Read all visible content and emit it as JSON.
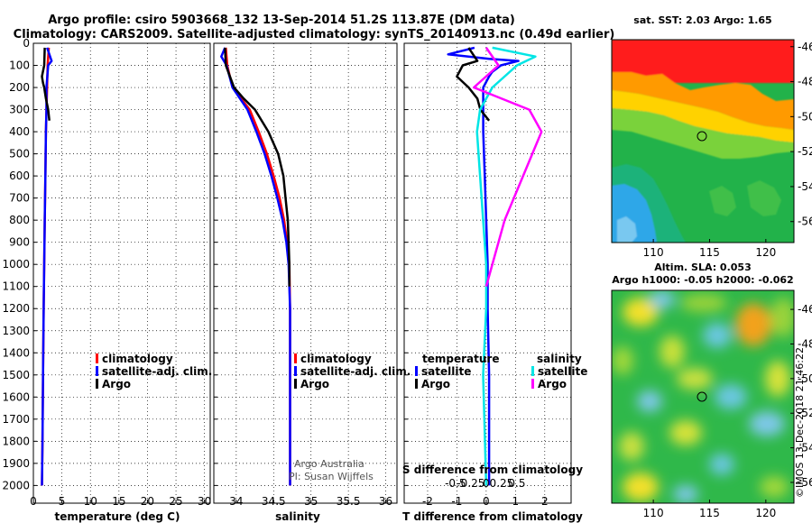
{
  "header": {
    "title_line1": "Argo profile: csiro 5903668_132 13-Sep-2014 51.2S 113.87E (DM data)",
    "title_line2": "Climatology: CARS2009. Satellite-adjusted climatology: synTS_20140913.nc (0.49d earlier)"
  },
  "watermark": "©IMOS 13-Dec-2018 21:46:22",
  "colors": {
    "climatology": "#ff0000",
    "satellite": "#0000ff",
    "argo": "#000000",
    "salinity_sat": "#00e5e5",
    "salinity_argo": "#ff00ff"
  },
  "chart_data": [
    {
      "type": "line",
      "id": "temperature",
      "xlabel": "temperature (deg C)",
      "ylabel": "depth",
      "xlim": [
        0,
        31
      ],
      "ylim": [
        2080,
        0
      ],
      "xticks": [
        0,
        5,
        10,
        15,
        20,
        25,
        30
      ],
      "yticks": [
        0,
        100,
        200,
        300,
        400,
        500,
        600,
        700,
        800,
        900,
        1000,
        1100,
        1200,
        1300,
        1400,
        1500,
        1600,
        1700,
        1800,
        1900,
        2000
      ],
      "legend": [
        "climatology",
        "satellite-adj. clim.",
        "Argo"
      ],
      "series": [
        {
          "name": "climatology",
          "color": "#ff0000",
          "depth": [
            20,
            100,
            200,
            300,
            400,
            600,
            800,
            1000,
            1200,
            1500,
            1800,
            2000
          ],
          "values": [
            2.7,
            2.5,
            2.4,
            2.3,
            2.2,
            2.1,
            2.0,
            1.9,
            1.8,
            1.7,
            1.6,
            1.5
          ]
        },
        {
          "name": "satellite-adj. clim.",
          "color": "#0000ff",
          "depth": [
            20,
            80,
            100,
            200,
            300,
            400,
            600,
            800,
            1000,
            1200,
            1500,
            1800,
            2000
          ],
          "values": [
            2.4,
            3.2,
            2.6,
            2.3,
            2.3,
            2.2,
            2.1,
            2.0,
            1.9,
            1.8,
            1.7,
            1.6,
            1.5
          ]
        },
        {
          "name": "Argo",
          "color": "#000000",
          "depth": [
            20,
            100,
            150,
            180,
            200,
            250,
            300,
            350
          ],
          "values": [
            2.0,
            1.9,
            1.5,
            1.7,
            1.9,
            2.2,
            2.6,
            2.8
          ]
        }
      ]
    },
    {
      "type": "line",
      "id": "salinity",
      "xlabel": "salinity",
      "xlim": [
        33.7,
        36.15
      ],
      "ylim": [
        2080,
        0
      ],
      "xticks": [
        34,
        34.5,
        35,
        35.5,
        36
      ],
      "legend": [
        "climatology",
        "satellite-adj. clim.",
        "Argo"
      ],
      "annotation_line1": "Argo Australia",
      "annotation_line2": "PI: Susan Wijffels",
      "series": [
        {
          "name": "climatology",
          "color": "#ff0000",
          "depth": [
            20,
            100,
            200,
            300,
            400,
            500,
            600,
            700,
            800,
            900,
            1000,
            1200,
            1500,
            2000
          ],
          "values": [
            33.86,
            33.88,
            33.95,
            34.18,
            34.3,
            34.41,
            34.5,
            34.58,
            34.64,
            34.68,
            34.71,
            34.72,
            34.72,
            34.72
          ]
        },
        {
          "name": "satellite-adj. clim.",
          "color": "#0000ff",
          "depth": [
            20,
            60,
            100,
            200,
            300,
            400,
            500,
            600,
            700,
            800,
            900,
            1000,
            1200,
            1500,
            2000
          ],
          "values": [
            33.85,
            33.8,
            33.87,
            33.95,
            34.15,
            34.27,
            34.38,
            34.47,
            34.55,
            34.62,
            34.67,
            34.7,
            34.72,
            34.72,
            34.72
          ]
        },
        {
          "name": "Argo",
          "color": "#000000",
          "depth": [
            20,
            100,
            200,
            250,
            300,
            400,
            500,
            600,
            700,
            800,
            900,
            1000,
            1100
          ],
          "values": [
            33.85,
            33.86,
            33.97,
            34.1,
            34.25,
            34.43,
            34.56,
            34.63,
            34.66,
            34.69,
            34.7,
            34.71,
            34.71
          ]
        }
      ]
    },
    {
      "type": "line",
      "id": "differences",
      "xlabel": "T difference from climatology",
      "xlabel_top": "S difference from climatology",
      "xlim": [
        -2.8,
        2.9
      ],
      "ylim": [
        2080,
        0
      ],
      "xticks": [
        -2,
        -1,
        0,
        1,
        2
      ],
      "s_ticks": [
        -0.5,
        -0.25,
        0,
        0.25,
        0.5
      ],
      "s_tick_labels": [
        "-0.5",
        "-0.25",
        "0",
        "0.25",
        "0.5"
      ],
      "legend_temperature_title": "temperature",
      "legend_salinity_title": "salinity",
      "legend_temperature": [
        "satellite",
        "Argo"
      ],
      "legend_salinity": [
        "satellite",
        "Argo"
      ],
      "series": [
        {
          "name": "T satellite",
          "color": "#0000ff",
          "depth": [
            20,
            50,
            70,
            80,
            100,
            130,
            150,
            200,
            300,
            400,
            600,
            800,
            1000,
            1200,
            1500,
            2000
          ],
          "values": [
            -0.4,
            -1.3,
            0.1,
            1.1,
            0.5,
            0.2,
            0.1,
            -0.1,
            -0.1,
            -0.1,
            -0.05,
            0,
            0.05,
            0.05,
            0.1,
            0.1
          ]
        },
        {
          "name": "T Argo",
          "color": "#000000",
          "depth": [
            20,
            80,
            100,
            150,
            200,
            250,
            300,
            350
          ],
          "values": [
            -0.6,
            -0.3,
            -0.8,
            -1.0,
            -0.6,
            -0.3,
            -0.2,
            0.1
          ]
        },
        {
          "name": "S satellite",
          "color": "#00e5e5",
          "depth": [
            20,
            60,
            100,
            200,
            300,
            400,
            600,
            800,
            1000,
            1200,
            1500,
            2000
          ],
          "values": [
            0.1,
            0.8,
            0.5,
            0.1,
            -0.1,
            -0.15,
            -0.1,
            -0.05,
            0.0,
            0.0,
            -0.05,
            0.0
          ]
        },
        {
          "name": "S Argo",
          "color": "#ff00ff",
          "depth": [
            20,
            100,
            200,
            300,
            400,
            600,
            800,
            1000,
            1100
          ],
          "values": [
            0.0,
            0.2,
            -0.2,
            0.7,
            0.9,
            0.6,
            0.3,
            0.1,
            0.0
          ]
        }
      ]
    },
    {
      "type": "heatmap",
      "id": "sst_map",
      "title": "sat. SST: 2.03 Argo: 1.65",
      "xticks": [
        110,
        115,
        120
      ],
      "yticks": [
        -46,
        -48,
        -50,
        -52,
        -54,
        -56
      ],
      "ytick_labels": [
        "-46",
        "-48",
        "-50",
        "-52",
        "-54",
        "-56"
      ],
      "xlim": [
        106.3,
        122.5
      ],
      "ylim": [
        -57.2,
        -45.6
      ],
      "marker": [
        113.87,
        -51.2
      ]
    },
    {
      "type": "heatmap",
      "id": "sla_map",
      "title_line1": "Altim. SLA: 0.053",
      "title_line2": "Argo h1000: -0.05 h2000: -0.062",
      "xticks": [
        110,
        115,
        120
      ],
      "yticks": [
        -46,
        -48,
        -50,
        -52,
        -54,
        -56
      ],
      "ytick_labels": [
        "-46",
        "-48",
        "-50",
        "-52",
        "-54",
        "-56"
      ],
      "xlim": [
        106.3,
        122.5
      ],
      "ylim": [
        -57.2,
        -44.9
      ],
      "marker": [
        113.87,
        -51.2
      ]
    }
  ]
}
